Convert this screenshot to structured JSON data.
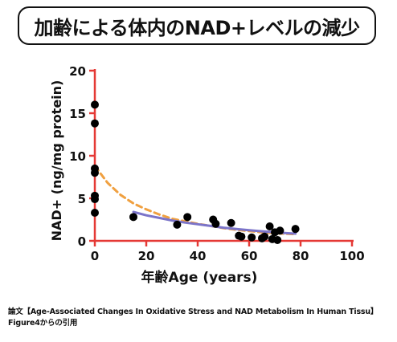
{
  "page_title": "加齢による体内のNAD+レベルの減少",
  "caption": {
    "line1": "論文【Age-Associated Changes In Oxidative Stress and NAD Metabolism In Human Tissu】",
    "line2": "Figure4からの引用"
  },
  "colors": {
    "axis": "#e53935",
    "points": "#000000",
    "dashed_fit": "#f0a040",
    "solid_fit": "#7b74c9"
  },
  "chart_data": {
    "type": "scatter",
    "xlabel": "年齢Age (years)",
    "ylabel": "NAD+ (ng/mg protein)",
    "xlim": [
      0,
      100
    ],
    "ylim": [
      0,
      20
    ],
    "x_ticks": [
      0,
      20,
      40,
      60,
      80,
      100
    ],
    "y_ticks": [
      0,
      5,
      10,
      15,
      20
    ],
    "grid": false,
    "legend": "none",
    "points": [
      {
        "x": 0,
        "y": 16.0
      },
      {
        "x": 0,
        "y": 13.8
      },
      {
        "x": 0,
        "y": 8.5
      },
      {
        "x": 0,
        "y": 8.0
      },
      {
        "x": 0,
        "y": 5.3
      },
      {
        "x": 0,
        "y": 4.9
      },
      {
        "x": 0,
        "y": 3.3
      },
      {
        "x": 15,
        "y": 2.8
      },
      {
        "x": 32,
        "y": 1.9
      },
      {
        "x": 36,
        "y": 2.8
      },
      {
        "x": 46,
        "y": 2.5
      },
      {
        "x": 47,
        "y": 2.0
      },
      {
        "x": 53,
        "y": 2.1
      },
      {
        "x": 56,
        "y": 0.6
      },
      {
        "x": 57,
        "y": 0.5
      },
      {
        "x": 61,
        "y": 0.4
      },
      {
        "x": 65,
        "y": 0.3
      },
      {
        "x": 66,
        "y": 0.5
      },
      {
        "x": 68,
        "y": 1.7
      },
      {
        "x": 69,
        "y": 0.2
      },
      {
        "x": 70,
        "y": 1.0
      },
      {
        "x": 71,
        "y": 0.1
      },
      {
        "x": 72,
        "y": 1.2
      },
      {
        "x": 78,
        "y": 1.4
      }
    ],
    "series": [
      {
        "style": "dashed",
        "x": [
          0,
          5,
          10,
          15,
          20,
          25,
          30,
          35,
          40,
          45,
          50,
          55,
          60,
          65,
          70,
          75,
          78
        ],
        "y": [
          8.8,
          6.8,
          5.4,
          4.4,
          3.7,
          3.1,
          2.6,
          2.3,
          2.0,
          1.75,
          1.5,
          1.3,
          1.15,
          1.0,
          0.9,
          0.82,
          0.78
        ]
      },
      {
        "style": "solid",
        "x": [
          15,
          20,
          25,
          30,
          35,
          40,
          45,
          50,
          55,
          60,
          65,
          70,
          75,
          78
        ],
        "y": [
          3.4,
          3.0,
          2.7,
          2.4,
          2.15,
          1.95,
          1.75,
          1.55,
          1.4,
          1.25,
          1.12,
          1.0,
          0.9,
          0.85
        ]
      }
    ]
  }
}
